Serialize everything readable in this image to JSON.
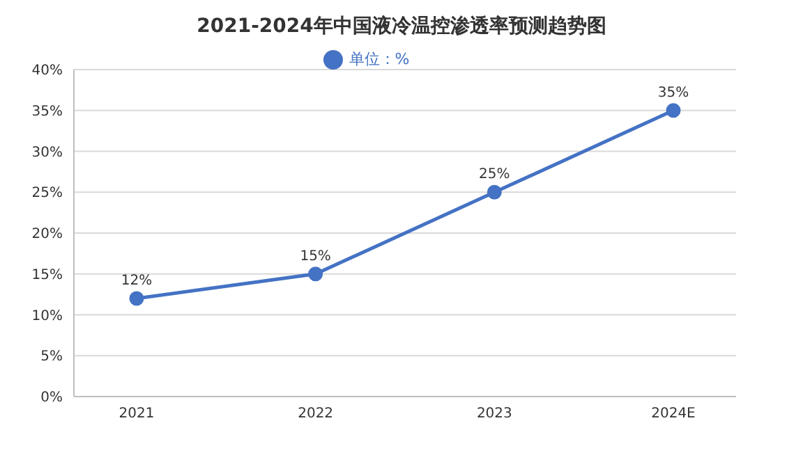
{
  "chart_data": {
    "type": "line",
    "title": "2021-2024年中国液冷温控渗透率预测趋势图",
    "categories": [
      "2021",
      "2022",
      "2023",
      "2024E"
    ],
    "series": [
      {
        "name": "单位：%",
        "color": "#4472c4",
        "values": [
          12,
          15,
          25,
          35
        ],
        "value_labels": [
          "12%",
          "15%",
          "25%",
          "35%"
        ]
      }
    ],
    "ylim": [
      0,
      40
    ],
    "yticks": [
      {
        "value": 0,
        "label": "0%"
      },
      {
        "value": 5,
        "label": "5%"
      },
      {
        "value": 10,
        "label": "10%"
      },
      {
        "value": 15,
        "label": "15%"
      },
      {
        "value": 20,
        "label": "20%"
      },
      {
        "value": 25,
        "label": "25%"
      },
      {
        "value": 30,
        "label": "30%"
      },
      {
        "value": 35,
        "label": "35%"
      },
      {
        "value": 40,
        "label": "40%"
      }
    ],
    "grid": "y",
    "legend": "top",
    "marker": "circle",
    "line_style": "solid"
  }
}
